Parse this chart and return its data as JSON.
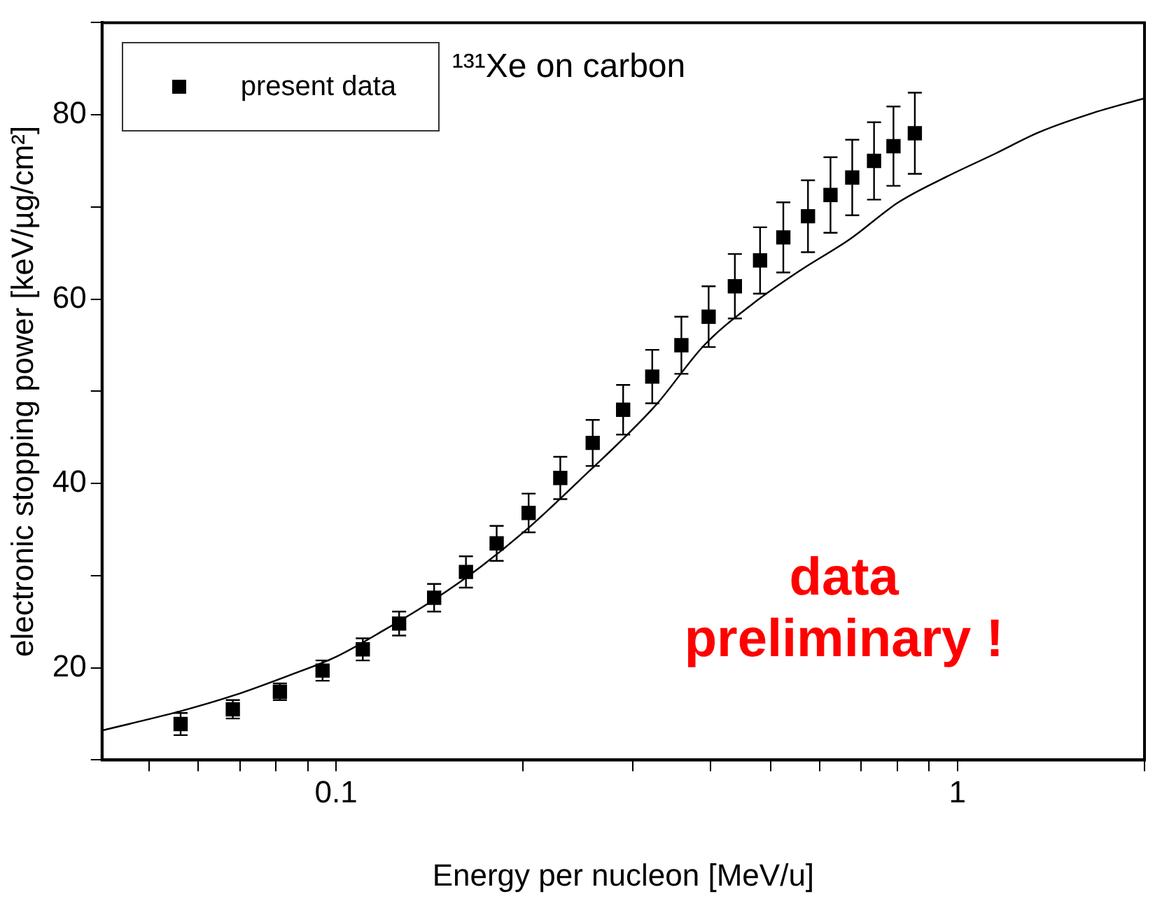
{
  "chart_data": {
    "type": "scatter",
    "title": "¹³¹Xe on carbon",
    "xlabel": "Energy per nucleon [MeV/u]",
    "ylabel": "electronic stopping power [keV/µg/cm²]",
    "annotations": [
      "data preliminary !"
    ],
    "log": "x",
    "xlim": [
      0.042,
      2
    ],
    "ylim": [
      10,
      90
    ],
    "xticks": [
      {
        "value": 0.05,
        "label": null
      },
      {
        "value": 0.06,
        "label": null
      },
      {
        "value": 0.07,
        "label": null
      },
      {
        "value": 0.08,
        "label": null
      },
      {
        "value": 0.09,
        "label": null
      },
      0.1,
      {
        "value": 0.2,
        "label": null
      },
      {
        "value": 0.3,
        "label": null
      },
      {
        "value": 0.4,
        "label": null
      },
      {
        "value": 0.5,
        "label": null
      },
      {
        "value": 0.6,
        "label": null
      },
      {
        "value": 0.7,
        "label": null
      },
      {
        "value": 0.8,
        "label": null
      },
      {
        "value": 0.9,
        "label": null
      },
      1,
      {
        "value": 2,
        "label": null
      }
    ],
    "yticks": [
      {
        "value": 10,
        "label": null
      },
      20,
      {
        "value": 30,
        "label": null
      },
      40,
      {
        "value": 50,
        "label": null
      },
      60,
      {
        "value": 70,
        "label": null
      },
      80,
      {
        "value": 90,
        "label": null
      }
    ],
    "grid": false,
    "legend": "top left",
    "series": [
      {
        "name": "present data",
        "type": "scatter",
        "marker": "square",
        "color": "#000000",
        "x": [
          0.0562,
          0.0682,
          0.0812,
          0.0951,
          0.1104,
          0.1263,
          0.1438,
          0.1618,
          0.1813,
          0.2041,
          0.2295,
          0.2588,
          0.2897,
          0.3227,
          0.3595,
          0.3977,
          0.4383,
          0.4812,
          0.5245,
          0.5747,
          0.6247,
          0.6771,
          0.7341,
          0.7889,
          0.8539
        ],
        "values": [
          13.9,
          15.5,
          17.4,
          19.7,
          22.0,
          24.8,
          27.6,
          30.4,
          33.5,
          36.8,
          40.6,
          44.4,
          48.0,
          51.6,
          55.0,
          58.1,
          61.4,
          64.2,
          66.7,
          69.0,
          71.3,
          73.2,
          75.0,
          76.6,
          78.0
        ],
        "errors": [
          1.2,
          1.0,
          0.9,
          1.1,
          1.2,
          1.3,
          1.5,
          1.7,
          1.9,
          2.1,
          2.3,
          2.5,
          2.7,
          2.9,
          3.1,
          3.3,
          3.5,
          3.6,
          3.8,
          3.9,
          4.1,
          4.1,
          4.2,
          4.3,
          4.4
        ]
      },
      {
        "type": "line",
        "marker": "none",
        "line_style": "solid",
        "color": "#000000",
        "x": [
          0.042,
          0.0562,
          0.0684,
          0.0834,
          0.1,
          0.1195,
          0.143,
          0.1712,
          0.2049,
          0.2452,
          0.327,
          0.3912,
          0.4684,
          0.5608,
          0.671,
          0.8031,
          0.9614,
          1.151,
          1.352,
          1.634,
          2.0
        ],
        "values": [
          13.2,
          15.3,
          17.0,
          19.1,
          21.2,
          24.1,
          27.3,
          31.0,
          35.3,
          40.2,
          48.5,
          55.0,
          59.5,
          63.2,
          66.5,
          70.5,
          73.3,
          75.8,
          78.1,
          80.1,
          81.8
        ]
      }
    ]
  }
}
